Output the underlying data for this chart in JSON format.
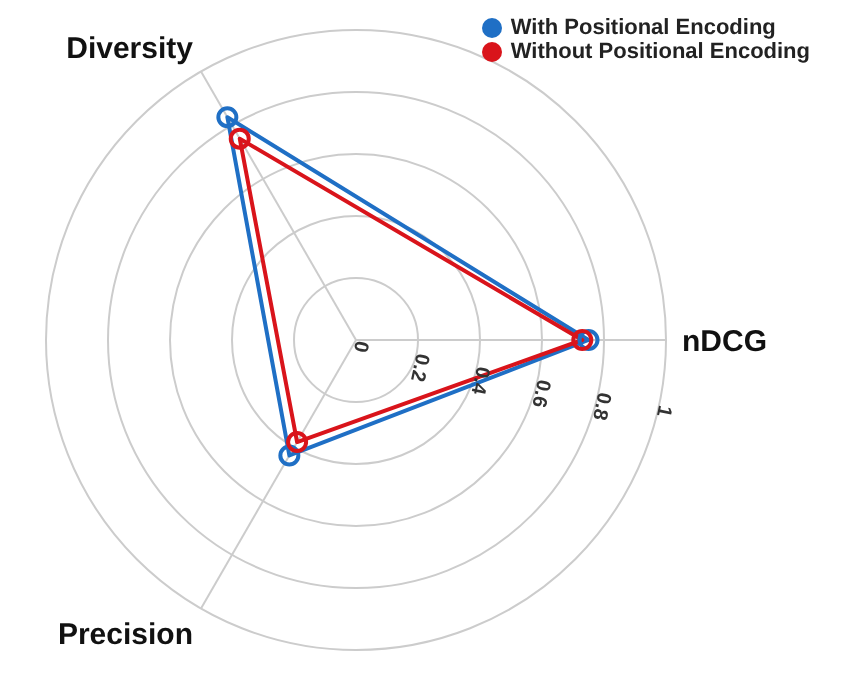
{
  "chart_data": {
    "type": "radar",
    "categories": [
      "nDCG",
      "Precision",
      "Diversity"
    ],
    "series": [
      {
        "name": "With Positional Encoding",
        "color": "#1f6fc5",
        "values": [
          0.75,
          0.43,
          0.83
        ]
      },
      {
        "name": "Without Positional Encoding",
        "color": "#d9141b",
        "values": [
          0.73,
          0.38,
          0.75
        ]
      }
    ],
    "ylim": [
      0,
      1
    ],
    "yticks": [
      0,
      0.2,
      0.4,
      0.6,
      0.8,
      1
    ],
    "grid": true,
    "legend": "top right",
    "marker": "circle"
  }
}
